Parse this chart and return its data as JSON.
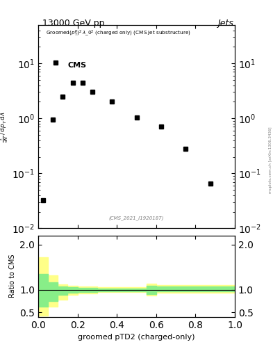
{
  "title_top": "13000 GeV pp",
  "title_right": "Jets",
  "cms_label": "CMS",
  "watermark": "(CMS_2021_I1920187)",
  "right_label": "mcplots.cern.ch [arXiv:1306.3436]",
  "xlabel": "groomed pTD2 (charged-only)",
  "ylabel_ratio": "Ratio to CMS",
  "data_x": [
    0.025,
    0.075,
    0.125,
    0.175,
    0.225,
    0.275,
    0.375,
    0.5,
    0.625,
    0.75,
    0.875
  ],
  "data_y": [
    0.032,
    0.95,
    2.5,
    4.5,
    4.5,
    3.0,
    2.0,
    1.05,
    0.7,
    0.28,
    0.065
  ],
  "bin_edges": [
    0.0,
    0.05,
    0.1,
    0.15,
    0.2,
    0.3,
    0.55,
    0.6,
    1.0
  ],
  "outer_lo": [
    0.43,
    0.63,
    0.78,
    0.88,
    0.92,
    0.95,
    0.87,
    0.93
  ],
  "outer_hi": [
    1.72,
    1.32,
    1.12,
    1.09,
    1.07,
    1.05,
    1.13,
    1.1
  ],
  "inner_lo": [
    0.63,
    0.75,
    0.88,
    0.93,
    0.95,
    0.97,
    0.9,
    0.96
  ],
  "inner_hi": [
    1.35,
    1.17,
    1.07,
    1.06,
    1.04,
    1.03,
    1.09,
    1.07
  ],
  "band_color_outer": "#ffff88",
  "band_color_inner": "#88ee88",
  "ylim_main": [
    0.01,
    50
  ],
  "ylim_ratio": [
    0.4,
    2.2
  ],
  "yticks_ratio": [
    0.5,
    1.0,
    2.0
  ],
  "xticks": [
    0.0,
    0.2,
    0.4,
    0.6,
    0.8,
    1.0
  ]
}
